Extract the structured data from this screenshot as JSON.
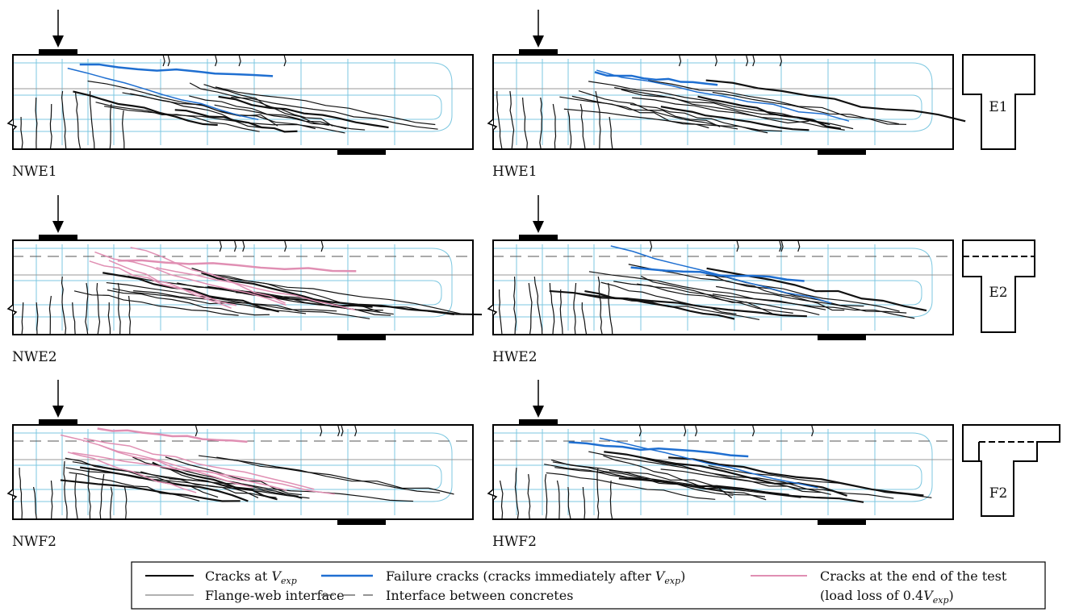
{
  "panels": [
    {
      "label": "NWE1"
    },
    {
      "label": "HWE1"
    },
    {
      "label": "NWE2"
    },
    {
      "label": "HWE2"
    },
    {
      "label": "NWF2"
    },
    {
      "label": "HWF2"
    }
  ],
  "sections": [
    {
      "label": "E1"
    },
    {
      "label": "E2"
    },
    {
      "label": "F2"
    }
  ],
  "legend": [
    {
      "lines": [
        [
          "Cracks at ",
          "V",
          "exp"
        ]
      ]
    },
    {
      "lines": [
        [
          "Failure cracks (cracks immediately after ",
          "V",
          "exp",
          ")"
        ]
      ]
    },
    {
      "lines": [
        [
          "Cracks at the end of the test"
        ],
        [
          "(load loss of 0.4",
          "V",
          "exp",
          ")"
        ]
      ]
    },
    {
      "lines": [
        [
          "Flange-web interface"
        ]
      ]
    },
    {
      "lines": [
        [
          "Interface between concretes"
        ]
      ]
    }
  ]
}
